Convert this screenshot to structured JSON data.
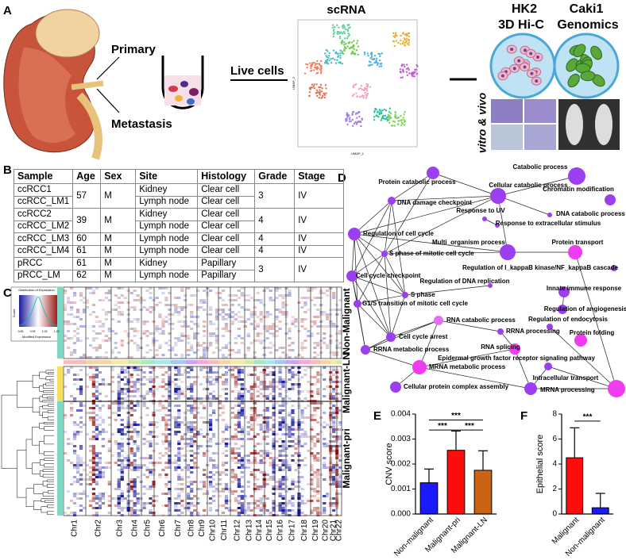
{
  "panel_a": {
    "label": "A",
    "primary": "Primary",
    "metastasis": "Metastasis",
    "live_cells": "Live cells",
    "scrna": "scRNA",
    "umap_x": "UMAP_1",
    "umap_y": "UMAP_2",
    "hk2": "HK2",
    "caki1": "Caki1",
    "hic": "3D Hi-C",
    "genomics": "Genomics",
    "assay": "vitro & vivo"
  },
  "panel_b": {
    "label": "B",
    "header": [
      "Sample",
      "Age",
      "Sex",
      "Site",
      "Histology",
      "Grade",
      "Stage"
    ],
    "rows": [
      [
        "ccRCC1",
        57,
        "M",
        "Kidney",
        "Clear cell",
        3,
        "IV"
      ],
      [
        "ccRCC_LM1",
        "Lymph node",
        "Clear cell"
      ],
      [
        "ccRCC2",
        39,
        "M",
        "Kidney",
        "Clear cell",
        4,
        "IV"
      ],
      [
        "ccRCC_LM2",
        "Lymph node",
        "Clear cell"
      ],
      [
        "ccRCC_LM3",
        60,
        "M",
        "Lymph node",
        "Clear cell",
        4,
        "IV"
      ],
      [
        "ccRCC_LM4",
        61,
        "M",
        "Lymph node",
        "Clear cell",
        4,
        "IV"
      ],
      [
        "pRCC",
        61,
        "M",
        "Kidney",
        "Papillary",
        3,
        "IV"
      ],
      [
        "pRCC_LM",
        62,
        "M",
        "Lymph node",
        "Papillary"
      ]
    ]
  },
  "panel_c": {
    "label": "C",
    "legend_title": "Distribution of Expression",
    "legend_y": "Count",
    "legend_x": "Modified Expression",
    "legend_ticks": [
      "0.85",
      "0.95",
      "1.05",
      "1.15"
    ],
    "groups": [
      "Non-Malignant",
      "Malignant-LN",
      "Malignant-pri"
    ],
    "chromosomes": [
      "Chr1",
      "Chr2",
      "Chr3",
      "Chr4",
      "Chr5",
      "Chr6",
      "Chr7",
      "Chr8",
      "Chr9",
      "Chr10",
      "Chr11",
      "Chr12",
      "Chr13",
      "Chr14",
      "Chr15",
      "Chr16",
      "Chr17",
      "Chr18",
      "Chr19",
      "Chr20",
      "Chr21",
      "Chr22"
    ]
  },
  "panel_d": {
    "label": "D",
    "nodes": [
      "Catabolic process",
      "Protein catabolic process",
      "Cellular catabolic process",
      "Chromatin modification",
      "DNA damage checkpoint",
      "DNA catabolic process",
      "Response to UV",
      "Response to extracellular stimulus",
      "Regulation of cell cycle",
      "Multi_organism process",
      "Protein transport",
      "S phase of mitotic cell cycle",
      "Regulation of I_kappaB kinase/NF_kappaB cascade",
      "Cell cycle checkpoint",
      "Regulation of DNA replication",
      "Innate immune response",
      "S phase",
      "G1/S transition of mitotic cell cycle",
      "Regulation of angiogenesis",
      "Regulation of endocytosis",
      "RNA catabolic process",
      "Cell cycle arrest",
      "RRNA processing",
      "Protein folding",
      "RRNA metabolic process",
      "RNA splicing",
      "Epidermal growth factor receptor signaling pathway",
      "MRNA metabolic process",
      "Intracellular transport",
      "Cellular protein complex assembly",
      "MRNA processing"
    ]
  },
  "chart_data": [
    {
      "type": "bar",
      "panel": "E",
      "ylabel": "CNV score",
      "categories": [
        "Non-malignant",
        "Malignant-pri",
        "Malignant-LN"
      ],
      "values": [
        0.00125,
        0.00255,
        0.00175
      ],
      "errors": [
        0.00055,
        0.00077,
        0.00078
      ],
      "colors": [
        "#1a1aff",
        "#ff0d0d",
        "#c86414"
      ],
      "ylim": [
        0,
        0.004
      ],
      "yticks": [
        {
          "value": 0,
          "label": "0.000"
        },
        {
          "value": 0.001,
          "label": "0.001"
        },
        {
          "value": 0.002,
          "label": "0.002"
        },
        {
          "value": 0.003,
          "label": "0.003"
        },
        {
          "value": 0.004,
          "label": "0.004"
        }
      ],
      "annotations": [
        "***",
        "***",
        "***"
      ]
    },
    {
      "type": "bar",
      "panel": "F",
      "ylabel": "Epithelial score",
      "categories": [
        "Malignant",
        "Non-malignant"
      ],
      "values": [
        4.5,
        0.5
      ],
      "errors": [
        2.4,
        1.15
      ],
      "colors": [
        "#ff0d0d",
        "#1a1aff"
      ],
      "ylim": [
        0,
        8
      ],
      "yticks": [
        0,
        2,
        4,
        6,
        8
      ],
      "annotations": [
        "***"
      ]
    }
  ]
}
